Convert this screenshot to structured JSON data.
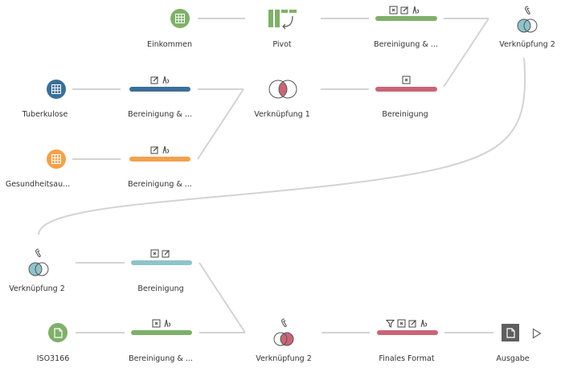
{
  "colors": {
    "green": "#7fb069",
    "blue": "#3b6f96",
    "orange": "#f3a14b",
    "teal": "#8ec3ca",
    "red": "#c96576",
    "gray_line": "#d3d3d3",
    "output": "#5f5f5f"
  },
  "flow": {
    "einkommen": "Einkommen",
    "pivot": "Pivot",
    "clean_top": "Bereinigung & ...",
    "join2_top": "Verknüpfung 2",
    "tuberkulose": "Tuberkulose",
    "clean_tb": "Bereinigung & ...",
    "join1": "Verknüpfung 1",
    "clean_red": "Bereinigung",
    "gesundheit": "Gesundheitsau...",
    "clean_gs": "Bereinigung & ...",
    "join2_left": "Verknüpfung 2",
    "clean_teal": "Bereinigung",
    "iso": "ISO3166",
    "clean_iso": "Bereinigung & ...",
    "join2_bottom": "Verknüpfung 2",
    "final": "Finales Format",
    "output": "Ausgabe"
  },
  "icons": {
    "input": "table-icon",
    "file": "file-icon",
    "pivot": "pivot-icon",
    "join": "join-icon",
    "clean": "clean-step-icon",
    "output": "output-icon",
    "run": "play-icon"
  }
}
